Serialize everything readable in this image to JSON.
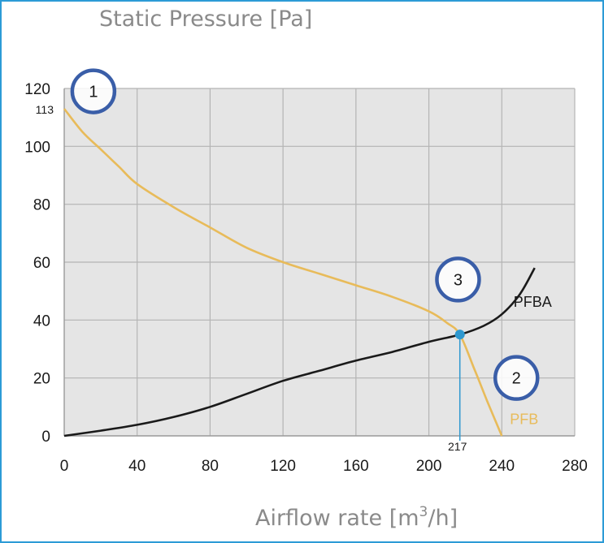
{
  "chart_data": {
    "type": "line",
    "ylabel": "Static Pressure [Pa]",
    "xlabel": {
      "main": "Airflow rate [m",
      "sup": "3",
      "tail": "/h]"
    },
    "xlim": [
      0,
      280
    ],
    "ylim": [
      0,
      120
    ],
    "x_ticks": [
      0,
      40,
      80,
      120,
      160,
      200,
      240,
      280
    ],
    "y_ticks": [
      0,
      20,
      40,
      60,
      80,
      100,
      120
    ],
    "y_extra_tick": {
      "value": 113,
      "label": "113"
    },
    "grid": true,
    "series": [
      {
        "name": "PFB",
        "color": "#e8bb5a",
        "points": [
          [
            0,
            113
          ],
          [
            10,
            105
          ],
          [
            20,
            99
          ],
          [
            30,
            93
          ],
          [
            40,
            87
          ],
          [
            60,
            79
          ],
          [
            80,
            72
          ],
          [
            100,
            65
          ],
          [
            120,
            60
          ],
          [
            140,
            56
          ],
          [
            160,
            52
          ],
          [
            180,
            48
          ],
          [
            200,
            43
          ],
          [
            210,
            39
          ],
          [
            217,
            35
          ],
          [
            225,
            23
          ],
          [
            232,
            12
          ],
          [
            240,
            0
          ]
        ]
      },
      {
        "name": "PFBA",
        "color": "#1a1a1a",
        "points": [
          [
            0,
            0
          ],
          [
            20,
            1.8
          ],
          [
            40,
            3.8
          ],
          [
            60,
            6.5
          ],
          [
            80,
            10
          ],
          [
            100,
            14.5
          ],
          [
            120,
            19
          ],
          [
            140,
            22.5
          ],
          [
            160,
            26
          ],
          [
            180,
            29
          ],
          [
            200,
            32.5
          ],
          [
            217,
            35
          ],
          [
            230,
            38
          ],
          [
            240,
            42
          ],
          [
            250,
            49
          ],
          [
            258,
            58
          ]
        ]
      }
    ],
    "operating_point": {
      "x": 217,
      "y": 35,
      "label": "217",
      "color": "#2e98cf"
    },
    "markers": [
      {
        "label": "1",
        "x": 16,
        "y": 119
      },
      {
        "label": "2",
        "x": 248,
        "y": 20
      },
      {
        "label": "3",
        "x": 216,
        "y": 54
      }
    ],
    "marker_color": "#3a5ea8"
  }
}
